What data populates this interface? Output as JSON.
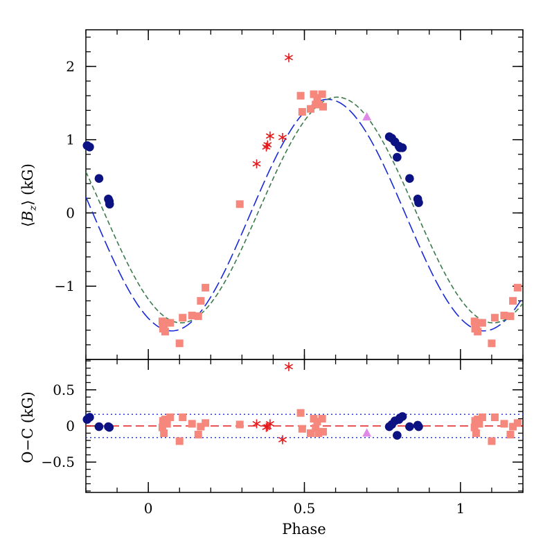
{
  "chart_data": [
    {
      "type": "scatter",
      "panel": "top",
      "xlabel": "Phase",
      "ylabel_parts": [
        "⟨",
        "B",
        "z",
        "⟩ (kG)"
      ],
      "xlim": [
        -0.2,
        1.2
      ],
      "ylim": [
        -2.0,
        2.5
      ],
      "x_ticks": [
        0,
        0.5,
        1
      ],
      "x_tick_labels": [
        "0",
        "0.5",
        "1"
      ],
      "y_ticks": [
        -1,
        0,
        1,
        2
      ],
      "y_tick_labels": [
        "−1",
        "0",
        "1",
        "2"
      ],
      "colors": {
        "navy": "#0c1282",
        "salmon": "#f5877c",
        "red": "#e41a1c",
        "violet": "#e088e6",
        "blue_fit": "#1428d8",
        "green_fit": "#3a7a4a"
      },
      "fits": [
        {
          "style": "long-dash",
          "color": "#1428d8",
          "mean": -0.03,
          "amp": 1.58,
          "phase0": 0.075
        },
        {
          "style": "short-dash",
          "color": "#3a7a4a",
          "mean": 0.04,
          "amp": 1.54,
          "phase0": 0.105
        }
      ],
      "series": [
        {
          "marker": "circle",
          "color": "#0c1282",
          "x": [
            -0.196,
            -0.188,
            -0.158,
            -0.128,
            -0.125,
            -0.124,
            0.772,
            0.78,
            0.79,
            0.797,
            0.803,
            0.806,
            0.814,
            0.837,
            0.863,
            0.866
          ],
          "y": [
            0.92,
            0.9,
            0.47,
            0.19,
            0.16,
            0.12,
            1.04,
            1.02,
            0.97,
            0.76,
            0.91,
            0.89,
            0.89,
            0.47,
            0.19,
            0.14
          ]
        },
        {
          "marker": "square",
          "color": "#f5877c",
          "x": [
            0.045,
            0.047,
            0.05,
            0.054,
            0.06,
            0.07,
            0.1,
            0.11,
            0.14,
            0.16,
            0.168,
            0.183,
            0.293,
            0.488,
            0.493,
            0.52,
            0.53,
            0.536,
            0.541,
            0.545,
            0.557,
            0.56,
            1.045,
            1.047,
            1.05,
            1.055,
            1.06,
            1.07,
            1.1,
            1.11,
            1.14,
            1.16,
            1.168,
            1.183
          ],
          "y": [
            -1.48,
            -1.58,
            -1.52,
            -1.62,
            -1.5,
            -1.5,
            -1.78,
            -1.43,
            -1.4,
            -1.41,
            -1.2,
            -1.02,
            0.12,
            1.6,
            1.38,
            1.42,
            1.62,
            1.48,
            1.57,
            1.48,
            1.62,
            1.45,
            -1.48,
            -1.58,
            -1.52,
            -1.62,
            -1.5,
            -1.5,
            -1.78,
            -1.43,
            -1.4,
            -1.41,
            -1.2,
            -1.02
          ]
        },
        {
          "marker": "asterisk",
          "color": "#e41a1c",
          "x": [
            0.347,
            0.378,
            0.382,
            0.39,
            0.43,
            0.45
          ],
          "y": [
            0.67,
            0.9,
            0.93,
            1.05,
            1.03,
            2.12
          ]
        },
        {
          "marker": "triangle",
          "color": "#e088e6",
          "x": [
            0.7
          ],
          "y": [
            1.31
          ]
        }
      ]
    },
    {
      "type": "scatter",
      "panel": "bottom",
      "xlabel": "Phase",
      "ylabel": "O−C (kG)",
      "xlim": [
        -0.2,
        1.2
      ],
      "ylim": [
        -0.92,
        0.92
      ],
      "y_ticks": [
        -0.5,
        0,
        0.5
      ],
      "y_tick_labels": [
        "−0.5",
        "0",
        "0.5"
      ],
      "zero_line": 0,
      "bands": [
        0.16,
        -0.16
      ],
      "series": [
        {
          "marker": "circle",
          "color": "#0c1282",
          "x": [
            -0.196,
            -0.188,
            -0.158,
            -0.128,
            -0.125,
            0.772,
            0.78,
            0.79,
            0.797,
            0.803,
            0.806,
            0.814,
            0.837,
            0.863,
            0.866
          ],
          "y": [
            0.09,
            0.12,
            -0.01,
            -0.01,
            -0.02,
            -0.01,
            0.02,
            0.07,
            -0.13,
            0.09,
            0.11,
            0.13,
            -0.01,
            0.01,
            -0.01
          ]
        },
        {
          "marker": "square",
          "color": "#f5877c",
          "x": [
            0.045,
            0.047,
            0.05,
            0.054,
            0.06,
            0.07,
            0.1,
            0.11,
            0.14,
            0.16,
            0.168,
            0.183,
            0.293,
            0.488,
            0.493,
            0.52,
            0.53,
            0.536,
            0.541,
            0.545,
            0.557,
            0.56,
            1.045,
            1.047,
            1.05,
            1.055,
            1.06,
            1.07,
            1.1,
            1.11,
            1.14,
            1.16,
            1.168,
            1.183
          ],
          "y": [
            -0.02,
            0.07,
            -0.1,
            0.09,
            0.03,
            0.12,
            -0.21,
            0.12,
            0.03,
            -0.12,
            -0.01,
            0.04,
            0.02,
            0.18,
            -0.04,
            -0.1,
            0.1,
            -0.03,
            0.06,
            -0.1,
            0.1,
            -0.08,
            -0.02,
            0.07,
            -0.1,
            0.09,
            0.03,
            0.12,
            -0.21,
            0.12,
            0.03,
            -0.12,
            -0.01,
            0.04
          ]
        },
        {
          "marker": "asterisk",
          "color": "#e41a1c",
          "x": [
            0.347,
            0.378,
            0.382,
            0.39,
            0.43,
            0.45
          ],
          "y": [
            0.03,
            -0.02,
            -0.01,
            0.03,
            -0.19,
            0.82
          ]
        },
        {
          "marker": "triangle",
          "color": "#e088e6",
          "x": [
            0.7
          ],
          "y": [
            -0.1
          ]
        }
      ]
    }
  ]
}
